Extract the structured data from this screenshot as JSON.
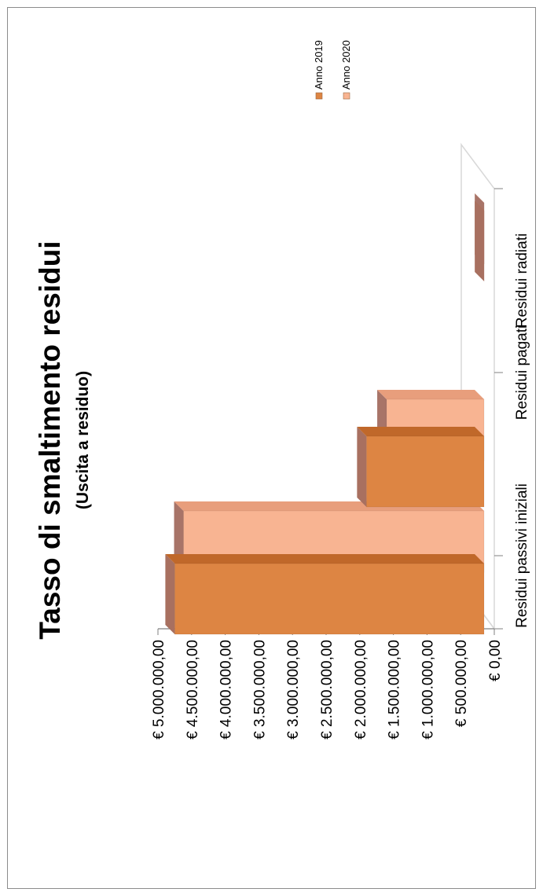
{
  "chart_data": {
    "type": "bar",
    "title": "Tasso di smaltimento residui",
    "subtitle": "(Uscita a residuo)",
    "categories": [
      "Residui passivi iniziali",
      "Residui pagati",
      "Residui radiati"
    ],
    "series": [
      {
        "name": "Anno 2019",
        "values": [
          4750000,
          1900000,
          150000
        ]
      },
      {
        "name": "Anno 2020",
        "values": [
          4620000,
          1600000,
          150000
        ]
      }
    ],
    "yticks": [
      "€ 0,00",
      "€ 500.000,00",
      "€ 1.000.000,00",
      "€ 1.500.000,00",
      "€ 2.000.000,00",
      "€ 2.500.000,00",
      "€ 3.000.000,00",
      "€ 3.500.000,00",
      "€ 4.000.000,00",
      "€ 4.500.000,00",
      "€ 5.000.000,00"
    ],
    "ylim": [
      0,
      5000000
    ],
    "orientation": "rotated-90",
    "legend_position": "top-right",
    "colors": {
      "Anno 2019": {
        "front": "#dd8543",
        "side": "#c0682a",
        "top": "#a87060"
      },
      "Anno 2020": {
        "front": "#f8b492",
        "side": "#e89e7c",
        "top": "#a87468"
      },
      "axis": "#808080",
      "floor": "#d8d8d8"
    }
  }
}
